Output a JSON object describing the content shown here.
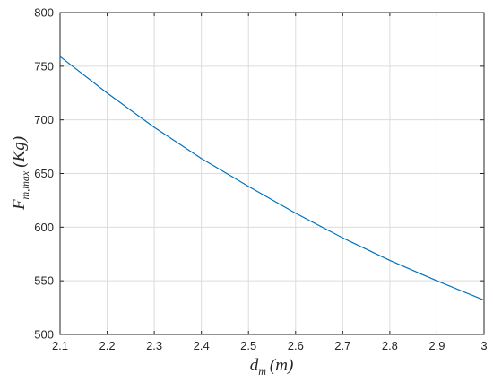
{
  "chart_data": {
    "type": "line",
    "title": "",
    "xlabel": {
      "main": "d",
      "sub": "m",
      "unit": "(m)"
    },
    "ylabel": {
      "main": "F",
      "sub": "m,max",
      "unit": "(Kg)"
    },
    "xlim": [
      2.1,
      3.0
    ],
    "ylim": [
      500,
      800
    ],
    "x_ticks": [
      "2.1",
      "2.2",
      "2.3",
      "2.4",
      "2.5",
      "2.6",
      "2.7",
      "2.8",
      "2.9",
      "3"
    ],
    "y_ticks": [
      "500",
      "550",
      "600",
      "650",
      "700",
      "750",
      "800"
    ],
    "grid": true,
    "line_color": "#0072BD",
    "series": [
      {
        "x": [
          2.1,
          2.2,
          2.3,
          2.4,
          2.5,
          2.6,
          2.7,
          2.8,
          2.9,
          3.0
        ],
        "y": [
          759,
          725,
          693,
          664,
          638,
          613,
          590,
          569,
          550,
          532
        ]
      }
    ]
  }
}
